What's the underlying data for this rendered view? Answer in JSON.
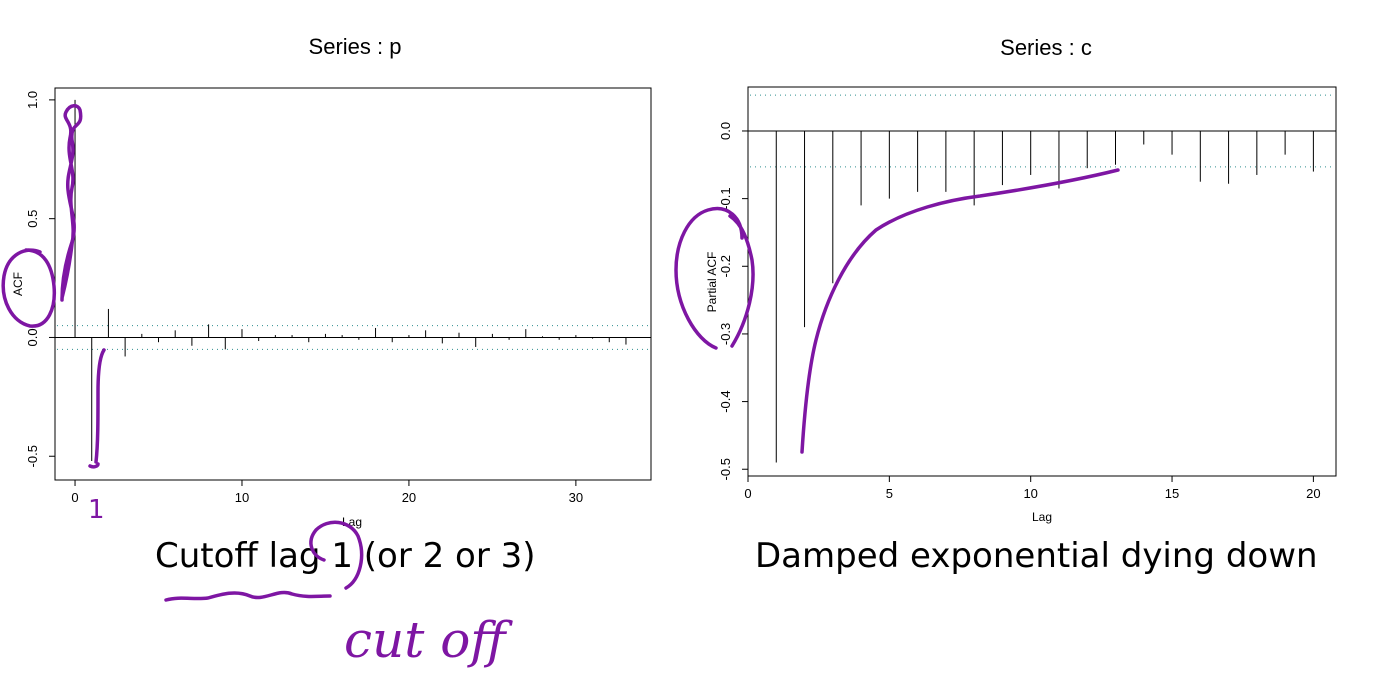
{
  "chart_data": [
    {
      "type": "bar",
      "title": "Series : p",
      "xlabel": "Lag",
      "ylabel": "ACF",
      "xlim": [
        -1.2,
        34.5
      ],
      "ylim": [
        -0.6,
        1.05
      ],
      "x_ticks": [
        0,
        10,
        20,
        30
      ],
      "y_ticks": [
        -0.5,
        0.0,
        0.5,
        1.0
      ],
      "x_tick_labels": [
        "0",
        "10",
        "20",
        "30"
      ],
      "y_tick_labels": [
        "-0.5",
        "0.0",
        "0.5",
        "1.0"
      ],
      "ci": 0.05,
      "x": [
        0,
        1,
        2,
        3,
        4,
        5,
        6,
        7,
        8,
        9,
        10,
        11,
        12,
        13,
        14,
        15,
        16,
        17,
        18,
        19,
        20,
        21,
        22,
        23,
        24,
        25,
        26,
        27,
        28,
        29,
        30,
        31,
        32,
        33
      ],
      "values": [
        1.0,
        -0.52,
        0.12,
        -0.08,
        0.015,
        -0.02,
        0.03,
        -0.035,
        0.055,
        -0.05,
        0.035,
        -0.015,
        0.01,
        0.01,
        -0.02,
        0.015,
        0.01,
        -0.01,
        0.04,
        -0.02,
        0.01,
        0.03,
        -0.025,
        0.02,
        -0.04,
        0.015,
        -0.01,
        0.035,
        0.005,
        -0.01,
        0.01,
        -0.005,
        -0.02,
        -0.03
      ],
      "caption": "Cutoff lag 1 (or 2 or 3)"
    },
    {
      "type": "bar",
      "title": "Series : c",
      "xlabel": "Lag",
      "ylabel": "Partial ACF",
      "xlim": [
        0,
        20.8
      ],
      "ylim": [
        -0.51,
        0.065
      ],
      "x_ticks": [
        0,
        5,
        10,
        15,
        20
      ],
      "y_ticks": [
        -0.5,
        -0.4,
        -0.3,
        -0.2,
        -0.1,
        0.0
      ],
      "x_tick_labels": [
        "0",
        "5",
        "10",
        "15",
        "20"
      ],
      "y_tick_labels": [
        "-0.5",
        "-0.4",
        "-0.3",
        "-0.2",
        "-0.1",
        "0.0"
      ],
      "ci": 0.053,
      "x": [
        1,
        2,
        3,
        4,
        5,
        6,
        7,
        8,
        9,
        10,
        11,
        12,
        13,
        14,
        15,
        16,
        17,
        18,
        19,
        20
      ],
      "values": [
        -0.49,
        -0.29,
        -0.225,
        -0.11,
        -0.1,
        -0.09,
        -0.09,
        -0.11,
        -0.08,
        -0.065,
        -0.085,
        -0.055,
        -0.05,
        -0.02,
        -0.035,
        -0.075,
        -0.078,
        -0.065,
        -0.035,
        -0.06
      ],
      "caption": "Damped exponential dying down"
    }
  ],
  "annotations": {
    "handwritten_note": "cut off",
    "handwritten_one": "1"
  }
}
